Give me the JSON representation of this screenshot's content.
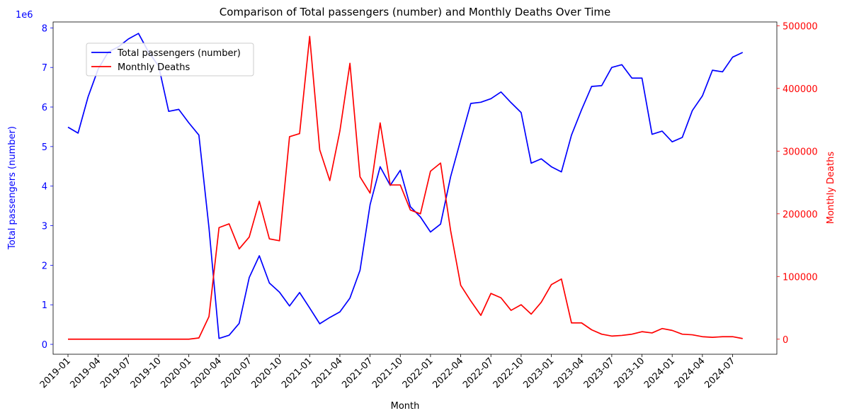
{
  "chart_data": {
    "type": "line",
    "title": "Comparison of Total passengers (number) and Monthly Deaths Over Time",
    "xlabel": "Month",
    "ylabel_left": "Total passengers (number)",
    "ylabel_right": "Monthly Deaths",
    "left_axis_offset_text": "1e6",
    "left_axis_color": "#0000ff",
    "right_axis_color": "#ff0000",
    "legend_position": "upper-left",
    "grid": false,
    "ylim_left": [
      -250000,
      8150000
    ],
    "ylim_right": [
      -24000,
      506000
    ],
    "left_ticks": [
      0,
      1000000,
      2000000,
      3000000,
      4000000,
      5000000,
      6000000,
      7000000,
      8000000
    ],
    "left_tick_labels": [
      "0",
      "1",
      "2",
      "3",
      "4",
      "5",
      "6",
      "7",
      "8"
    ],
    "right_ticks": [
      0,
      100000,
      200000,
      300000,
      400000,
      500000
    ],
    "right_tick_labels": [
      "0",
      "100000",
      "200000",
      "300000",
      "400000",
      "500000"
    ],
    "x_tick_labels": [
      "2019-01",
      "2019-04",
      "2019-07",
      "2019-10",
      "2020-01",
      "2020-04",
      "2020-07",
      "2020-10",
      "2021-01",
      "2021-04",
      "2021-07",
      "2021-10",
      "2022-01",
      "2022-04",
      "2022-07",
      "2022-10",
      "2023-01",
      "2023-04",
      "2023-07",
      "2023-10",
      "2024-01",
      "2024-04",
      "2024-07"
    ],
    "months": [
      "2019-01",
      "2019-02",
      "2019-03",
      "2019-04",
      "2019-05",
      "2019-06",
      "2019-07",
      "2019-08",
      "2019-09",
      "2019-10",
      "2019-11",
      "2019-12",
      "2020-01",
      "2020-02",
      "2020-03",
      "2020-04",
      "2020-05",
      "2020-06",
      "2020-07",
      "2020-08",
      "2020-09",
      "2020-10",
      "2020-11",
      "2020-12",
      "2021-01",
      "2021-02",
      "2021-03",
      "2021-04",
      "2021-05",
      "2021-06",
      "2021-07",
      "2021-08",
      "2021-09",
      "2021-10",
      "2021-11",
      "2021-12",
      "2022-01",
      "2022-02",
      "2022-03",
      "2022-04",
      "2022-05",
      "2022-06",
      "2022-07",
      "2022-08",
      "2022-09",
      "2022-10",
      "2022-11",
      "2022-12",
      "2023-01",
      "2023-02",
      "2023-03",
      "2023-04",
      "2023-05",
      "2023-06",
      "2023-07",
      "2023-08",
      "2023-09",
      "2023-10",
      "2023-11",
      "2023-12",
      "2024-01",
      "2024-02",
      "2024-03",
      "2024-04",
      "2024-05",
      "2024-06",
      "2024-07",
      "2024-08"
    ],
    "series": [
      {
        "name": "Total passengers (number)",
        "color": "#0000ff",
        "axis": "left",
        "values": [
          5490000,
          5340000,
          6260000,
          6960000,
          7390000,
          7520000,
          7720000,
          7860000,
          7390000,
          7040000,
          5890000,
          5940000,
          5600000,
          5290000,
          2950000,
          150000,
          230000,
          530000,
          1690000,
          2240000,
          1550000,
          1320000,
          970000,
          1310000,
          920000,
          520000,
          680000,
          820000,
          1170000,
          1870000,
          3530000,
          4490000,
          4020000,
          4400000,
          3480000,
          3220000,
          2840000,
          3040000,
          4240000,
          5170000,
          6090000,
          6120000,
          6210000,
          6380000,
          6110000,
          5860000,
          4580000,
          4690000,
          4490000,
          4360000,
          5290000,
          5930000,
          6520000,
          6540000,
          7000000,
          7070000,
          6730000,
          6730000,
          5310000,
          5390000,
          5120000,
          5230000,
          5910000,
          6280000,
          6930000,
          6890000,
          7260000,
          7380000
        ]
      },
      {
        "name": "Monthly Deaths",
        "color": "#ff0000",
        "axis": "right",
        "values": [
          0,
          0,
          0,
          0,
          0,
          0,
          0,
          0,
          0,
          0,
          0,
          0,
          0,
          2000,
          36000,
          178000,
          184000,
          144000,
          163000,
          220000,
          160000,
          157000,
          323000,
          328000,
          483000,
          302000,
          253000,
          332000,
          440000,
          259000,
          233000,
          345000,
          246000,
          246000,
          206000,
          200000,
          268000,
          281000,
          173000,
          86000,
          61000,
          38000,
          73000,
          66000,
          46000,
          55000,
          40000,
          59000,
          87000,
          96000,
          26000,
          26000,
          15000,
          8000,
          5000,
          6000,
          8000,
          12000,
          10000,
          17000,
          14000,
          8000,
          7000,
          4000,
          3000,
          4000,
          4000,
          1000
        ]
      }
    ]
  }
}
